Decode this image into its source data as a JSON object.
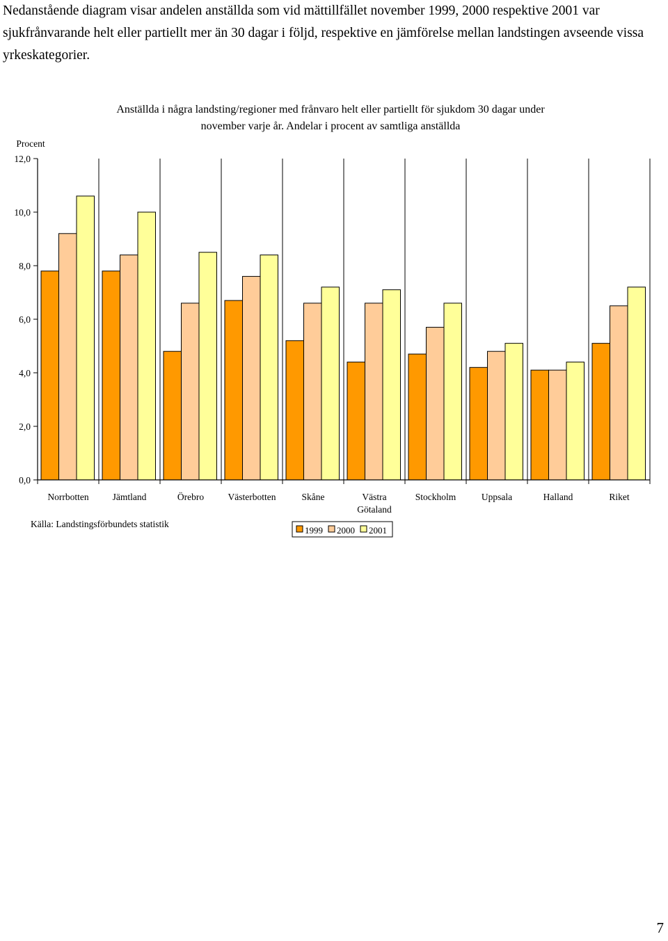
{
  "intro_text": "Nedanstående diagram visar andelen anställda som vid mättillfället november 1999, 2000 respektive 2001 var sjukfrånvarande helt eller partiellt mer än 30 dagar i följd, respektive en jämförelse mellan landstingen avseende vissa yrkeskategorier.",
  "page_number": "7",
  "colors": {
    "1999": "#ff9900",
    "2000": "#ffcc99",
    "2001": "#ffff99"
  },
  "chart_data": {
    "type": "bar",
    "title": "Anställda i några landsting/regioner med frånvaro helt eller partiellt för sjukdom 30 dagar under november varje år. Andelar i procent av samtliga anställda",
    "title_lines": [
      "Anställda i några landsting/regioner med frånvaro helt eller partiellt för sjukdom 30 dagar under",
      "november varje år. Andelar i procent av samtliga anställda"
    ],
    "ylabel": "Procent",
    "xlabel": "",
    "ylim": [
      0,
      12
    ],
    "yticks": [
      "0,0",
      "2,0",
      "4,0",
      "6,0",
      "8,0",
      "10,0",
      "12,0"
    ],
    "categories": [
      "Norrbotten",
      "Jämtland",
      "Örebro",
      "Västerbotten",
      "Skåne",
      "Västra Götaland",
      "Stockholm",
      "Uppsala",
      "Halland",
      "Riket"
    ],
    "category_lines": [
      [
        "Norrbotten"
      ],
      [
        "Jämtland"
      ],
      [
        "Örebro"
      ],
      [
        "Västerbotten"
      ],
      [
        "Skåne"
      ],
      [
        "Västra",
        "Götaland"
      ],
      [
        "Stockholm"
      ],
      [
        "Uppsala"
      ],
      [
        "Halland"
      ],
      [
        "Riket"
      ]
    ],
    "series": [
      {
        "name": "1999",
        "values": [
          7.8,
          7.8,
          4.8,
          6.7,
          5.2,
          4.4,
          4.7,
          4.2,
          4.1,
          5.1
        ]
      },
      {
        "name": "2000",
        "values": [
          9.2,
          8.4,
          6.6,
          7.6,
          6.6,
          6.6,
          5.7,
          4.8,
          4.1,
          6.5
        ]
      },
      {
        "name": "2001",
        "values": [
          10.6,
          10.0,
          8.5,
          8.4,
          7.2,
          7.1,
          6.6,
          5.1,
          4.4,
          7.2
        ]
      }
    ],
    "grid": "vertical",
    "legend": "bottom",
    "source_note": "Källa: Landstingsförbundets statistik"
  }
}
